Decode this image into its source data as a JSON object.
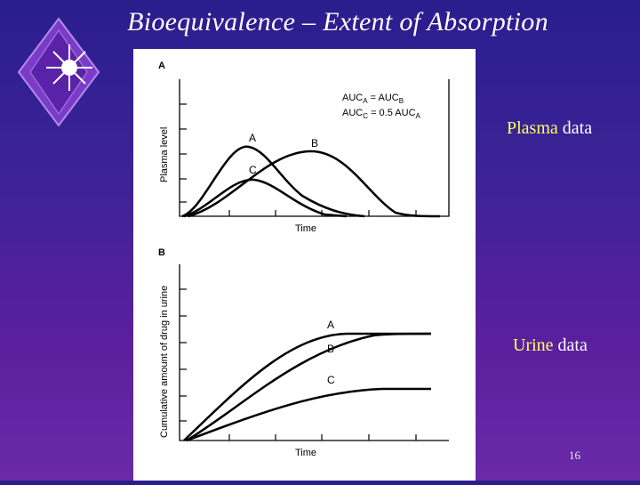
{
  "slide": {
    "title": "Bioequivalence – Extent of Absorption",
    "page_number": "16",
    "accent_color": "#ffff66"
  },
  "labels": {
    "plasma": {
      "highlight": "Plasma",
      "rest": " data"
    },
    "urine": {
      "highlight": "Urine",
      "rest": " data"
    }
  },
  "figure": {
    "panel_a": {
      "panel_letter": "A",
      "ylabel": "Plasma level",
      "xlabel": "Time",
      "eq1_lhs": "AUC",
      "eq1_lhs_sub": "A",
      "eq1_mid": " = AUC",
      "eq1_rhs_sub": "B",
      "eq2_lhs": "AUC",
      "eq2_lhs_sub": "C",
      "eq2_mid": " = 0.5 AUC",
      "eq2_rhs_sub": "A",
      "curve_labels": [
        "A",
        "B",
        "C"
      ]
    },
    "panel_b": {
      "panel_letter": "B",
      "ylabel": "Cumulative amount of drug in urine",
      "xlabel": "Time",
      "curve_labels": [
        "A",
        "B",
        "C"
      ]
    }
  }
}
